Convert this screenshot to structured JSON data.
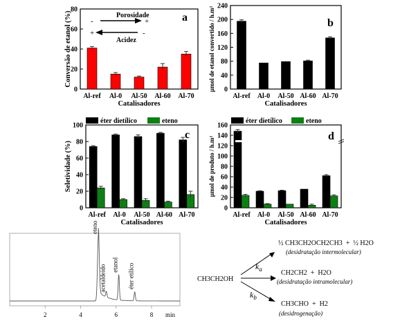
{
  "chart_data": [
    {
      "id": "a",
      "panel_label": "a",
      "type": "bar",
      "ylabel": "Conversão de etanol (%)",
      "xlabel": "Catalisadores",
      "categories": [
        "Al-ref",
        "Al-0",
        "Al-50",
        "Al-60",
        "Al-70"
      ],
      "ylim": [
        0,
        80
      ],
      "yticks": [
        0,
        20,
        40,
        60,
        80
      ],
      "series": [
        {
          "values": [
            41,
            15,
            12,
            22,
            35
          ],
          "errors": [
            1.5,
            1.5,
            1,
            3.5,
            2.5
          ],
          "color": "#ff0000"
        }
      ],
      "annotations": {
        "porosity": "Porosidade",
        "acidity": "Acidez",
        "minus": "-",
        "plus": "+"
      }
    },
    {
      "id": "b",
      "panel_label": "b",
      "type": "bar",
      "ylabel": "µmol de etanol convertido / h.m²",
      "xlabel": "Catalisadores",
      "categories": [
        "Al-ref",
        "Al-0",
        "Al-50",
        "Al-60",
        "Al-70"
      ],
      "ylim": [
        0,
        240
      ],
      "yticks": [
        0,
        40,
        80,
        120,
        160,
        200,
        240
      ],
      "series": [
        {
          "values": [
            195,
            75,
            79,
            81,
            147
          ],
          "errors": [
            4,
            0,
            0,
            2,
            3
          ],
          "color": "#000000"
        }
      ]
    },
    {
      "id": "c",
      "panel_label": "c",
      "type": "bar",
      "ylabel": "Seletividade (%)",
      "xlabel": "Catalisadores",
      "categories": [
        "Al-ref",
        "Al-0",
        "Al-50",
        "Al-60",
        "Al-70"
      ],
      "ylim": [
        0,
        100
      ],
      "yticks": [
        0,
        20,
        40,
        60,
        80,
        100
      ],
      "legend": "top",
      "series": [
        {
          "name": "éter dietílico",
          "values": [
            74,
            88,
            86,
            90,
            82
          ],
          "errors": [
            1,
            1,
            2,
            1,
            3
          ],
          "color": "#000000"
        },
        {
          "name": "eteno",
          "values": [
            24,
            10,
            9,
            7,
            16
          ],
          "errors": [
            2,
            1,
            2,
            1,
            4
          ],
          "color": "#0e7f14"
        }
      ]
    },
    {
      "id": "d",
      "panel_label": "d",
      "type": "bar",
      "ylabel": "µmol de produto / h.m²",
      "xlabel": "Catalisadores",
      "categories": [
        "Al-ref",
        "Al-0",
        "Al-50",
        "Al-60",
        "Al-70"
      ],
      "ylim": [
        0,
        160
      ],
      "yticks": [
        0,
        20,
        40,
        60,
        80,
        100,
        120,
        140,
        160
      ],
      "legend": "top",
      "series": [
        {
          "name": "éter dietílico",
          "values": [
            148,
            32,
            33,
            36,
            62
          ],
          "errors": [
            3,
            1,
            1,
            0,
            2
          ],
          "color": "#000000"
        },
        {
          "name": "eteno",
          "values": [
            24,
            7,
            7,
            5,
            23
          ],
          "errors": [
            2,
            1,
            0,
            2,
            2
          ],
          "color": "#0e7f14"
        }
      ]
    },
    {
      "id": "chromatogram",
      "type": "line",
      "xlabel": "min",
      "xlim": [
        0,
        9.6
      ],
      "xticks": [
        2,
        4,
        6,
        8
      ],
      "peaks": [
        {
          "label": "eteno",
          "x": 5.0,
          "height": 1.0
        },
        {
          "label": "acetaldeído",
          "x": 5.45,
          "height": 0.09
        },
        {
          "label": "etanol",
          "x": 6.15,
          "height": 0.4
        },
        {
          "label": "éter etílico",
          "x": 7.05,
          "height": 0.14
        }
      ]
    }
  ],
  "scheme": {
    "reactant": "CH3CH2OH",
    "rate_a": "k",
    "rate_a_sub": "a",
    "rate_b": "k",
    "rate_b_sub": "b",
    "products": [
      {
        "formula": "½ CH3CH2OCH2CH3  +  ½ H2O",
        "note": "(desidratação intermolecular)"
      },
      {
        "formula": "CH2CH2  +  H2O",
        "note": "(desidratação intramolecular)"
      },
      {
        "formula": "CH3CHO  +  H2",
        "note": "(desidrogenação)"
      }
    ]
  }
}
